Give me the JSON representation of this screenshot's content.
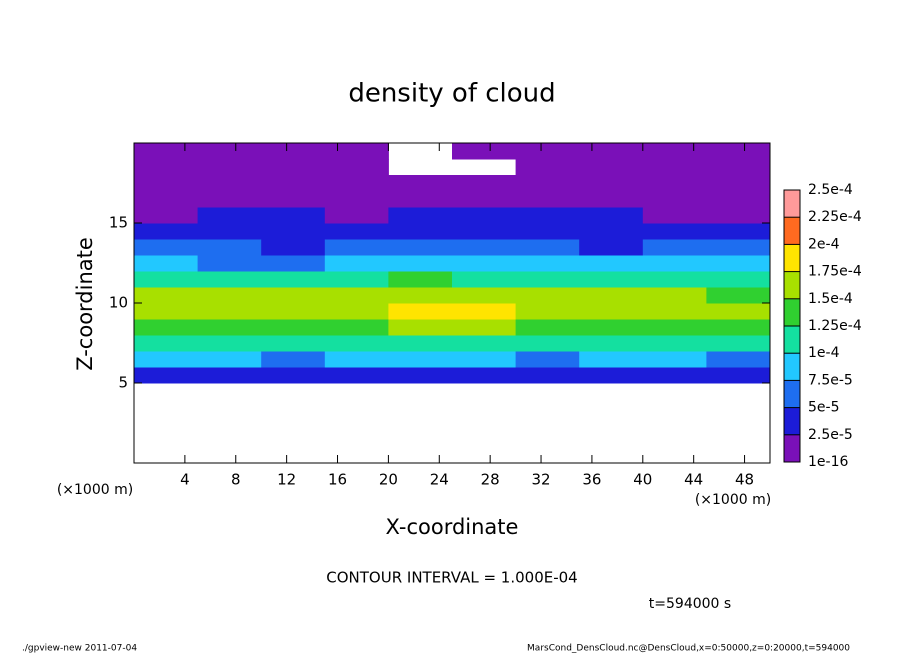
{
  "chart_data": {
    "type": "heatmap",
    "title": "density of cloud",
    "x_label": "X-coordinate",
    "y_label": "Z-coordinate",
    "x_unit": "(×1000 m)",
    "y_unit": "(×1000 m)",
    "note": "CONTOUR INTERVAL = 1.000E-04",
    "time_label": "t=594000 s",
    "footer_left": "./gpview-new  2011-07-04",
    "footer_right": "MarsCond_DensCloud.nc@DensCloud,x=0:50000,z=0:20000,t=594000",
    "xlim": [
      0,
      50
    ],
    "ylim": [
      0,
      20
    ],
    "xticks": [
      4,
      8,
      12,
      16,
      20,
      24,
      28,
      32,
      36,
      40,
      44,
      48
    ],
    "yticks": [
      5,
      10,
      15
    ],
    "xbins": [
      0,
      5,
      10,
      15,
      20,
      25,
      30,
      35,
      40,
      45,
      50
    ],
    "ybins": [
      5,
      6,
      7,
      8,
      9,
      10,
      11,
      12,
      13,
      14,
      15,
      16,
      17,
      18,
      19,
      20
    ],
    "values": [
      [
        3e-05,
        3e-05,
        4e-05,
        3e-05,
        3e-05,
        4e-05,
        3e-05,
        3e-05,
        4e-05,
        3e-05
      ],
      [
        8e-05,
        8e-05,
        7e-05,
        8e-05,
        8e-05,
        8e-05,
        7e-05,
        8e-05,
        8e-05,
        7e-05
      ],
      [
        0.00011,
        0.00011,
        0.0001,
        0.00011,
        0.00012,
        0.00011,
        0.00011,
        0.0001,
        0.00011,
        0.00011
      ],
      [
        0.00014,
        0.00014,
        0.00013,
        0.00014,
        0.00015,
        0.00015,
        0.00014,
        0.00013,
        0.00014,
        0.00013
      ],
      [
        0.00016,
        0.00016,
        0.00015,
        0.00016,
        0.00018,
        0.00018,
        0.00016,
        0.00015,
        0.00015,
        0.00015
      ],
      [
        0.00015,
        0.00016,
        0.00015,
        0.00016,
        0.00017,
        0.00017,
        0.00015,
        0.00015,
        0.00015,
        0.00014
      ],
      [
        0.00012,
        0.00012,
        0.00011,
        0.00012,
        0.00013,
        0.00012,
        0.00012,
        0.00011,
        0.00011,
        0.00012
      ],
      [
        8e-05,
        7e-05,
        7e-05,
        8e-05,
        8e-05,
        9e-05,
        8e-05,
        8e-05,
        8e-05,
        8e-05
      ],
      [
        5e-05,
        5e-05,
        4e-05,
        5e-05,
        6e-05,
        6e-05,
        5e-05,
        4e-05,
        5e-05,
        5e-05
      ],
      [
        3e-05,
        3e-05,
        3e-05,
        4e-05,
        4e-05,
        4e-05,
        3e-05,
        3e-05,
        3e-05,
        3e-05
      ],
      [
        2e-05,
        3e-05,
        3e-05,
        2e-05,
        3e-05,
        3e-05,
        3e-05,
        3e-05,
        2e-05,
        2e-05
      ],
      [
        2e-05,
        2e-05,
        2e-05,
        2e-05,
        2e-05,
        2e-05,
        2e-05,
        2e-05,
        2e-05,
        2e-05
      ],
      [
        1e-05,
        1e-05,
        1e-05,
        1e-05,
        1e-05,
        1e-05,
        1e-05,
        1e-05,
        1e-05,
        1e-05
      ],
      [
        5e-06,
        5e-06,
        5e-06,
        5e-06,
        null,
        null,
        5e-06,
        5e-06,
        5e-06,
        5e-06
      ],
      [
        3e-06,
        3e-06,
        3e-06,
        3e-06,
        null,
        3e-06,
        3e-06,
        3e-06,
        3e-06,
        3e-06
      ]
    ],
    "levels": [
      {
        "value": 1e-16,
        "label": "1e-16"
      },
      {
        "value": 2.5e-05,
        "label": "2.5e-5"
      },
      {
        "value": 5e-05,
        "label": "5e-5"
      },
      {
        "value": 7.5e-05,
        "label": "7.5e-5"
      },
      {
        "value": 0.0001,
        "label": "1e-4"
      },
      {
        "value": 0.000125,
        "label": "1.25e-4"
      },
      {
        "value": 0.00015,
        "label": "1.5e-4"
      },
      {
        "value": 0.000175,
        "label": "1.75e-4"
      },
      {
        "value": 0.0002,
        "label": "2e-4"
      },
      {
        "value": 0.000225,
        "label": "2.25e-4"
      },
      {
        "value": 0.00025,
        "label": "2.5e-4"
      }
    ],
    "colors": [
      "#7a10b8",
      "#1c1cd8",
      "#1e6ef0",
      "#22c8ff",
      "#14e0a0",
      "#30d030",
      "#a8e000",
      "#ffe400",
      "#ff6a20",
      "#ff9a9a"
    ]
  }
}
